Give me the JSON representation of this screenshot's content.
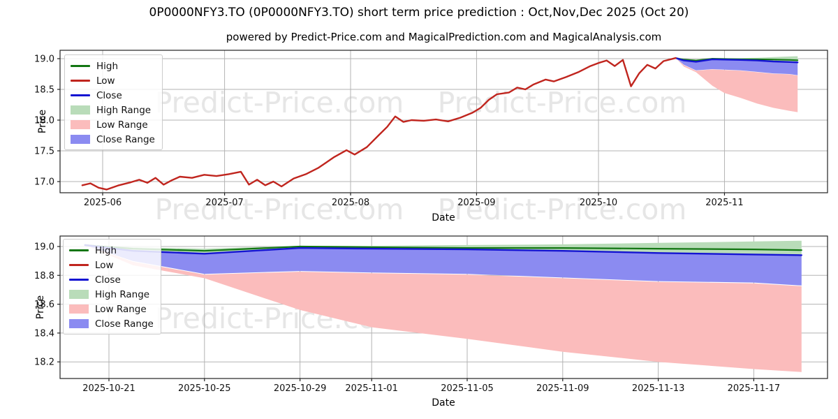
{
  "figure_title": "0P0000NFY3.TO (0P0000NFY3.TO) short term price prediction : Oct,Nov,Dec 2025 (Oct 20)",
  "subtitle": "powered by Predict-Price.com and MagicalPrediction.com and MagicalAnalysis.com",
  "ticker": "0P0000NFY3.TO",
  "prediction_label": "Oct,Nov,Dec 2025 (Oct 20)",
  "watermark": {
    "text": "Predict-Price.com"
  },
  "colors": {
    "high_line": "#127612",
    "low_line": "#c0251e",
    "close_line": "#1414d2",
    "high_range": "#b9dcb9",
    "low_range": "#fbbcbc",
    "close_range": "#8b8bf1",
    "grid": "#b3b3b3",
    "spine": "#222222",
    "watermark": "#e6e6e6"
  },
  "chart_data": [
    {
      "type": "line",
      "title": "powered by Predict-Price.com and MagicalPrediction.com and MagicalAnalysis.com",
      "xlabel": "Date",
      "ylabel": "Price",
      "grid": true,
      "legend_position": "upper left",
      "legend_items": [
        {
          "label": "High",
          "type": "line",
          "color": "#127612"
        },
        {
          "label": "Low",
          "type": "line",
          "color": "#c0251e"
        },
        {
          "label": "Close",
          "type": "line",
          "color": "#1414d2"
        },
        {
          "label": "High Range",
          "type": "patch",
          "color": "#b9dcb9"
        },
        {
          "label": "Low Range",
          "type": "patch",
          "color": "#fbbcbc"
        },
        {
          "label": "Close Range",
          "type": "patch",
          "color": "#8b8bf1"
        }
      ],
      "x_ticks": [
        {
          "label": "2025-06",
          "date": "2025-06-01"
        },
        {
          "label": "2025-07",
          "date": "2025-07-01"
        },
        {
          "label": "2025-08",
          "date": "2025-08-01"
        },
        {
          "label": "2025-09",
          "date": "2025-09-01"
        },
        {
          "label": "2025-10",
          "date": "2025-10-01"
        },
        {
          "label": "2025-11",
          "date": "2025-11-01"
        }
      ],
      "y_ticks": [
        {
          "v": 17.0,
          "label": "17.0"
        },
        {
          "v": 17.5,
          "label": "17.5"
        },
        {
          "v": 18.0,
          "label": "18.0"
        },
        {
          "v": 18.5,
          "label": "18.5"
        },
        {
          "v": 19.0,
          "label": "19.0"
        }
      ],
      "ylim": [
        16.82,
        19.14
      ],
      "xlim": [
        "2025-05-21",
        "2025-11-28"
      ],
      "series": [
        {
          "name": "High Range",
          "type": "band",
          "color": "#b9dcb9",
          "dates": [
            "2025-10-20",
            "2025-10-22",
            "2025-10-25",
            "2025-10-29",
            "2025-11-01",
            "2025-11-05",
            "2025-11-09",
            "2025-11-13",
            "2025-11-17",
            "2025-11-19"
          ],
          "upper": [
            19.01,
            18.995,
            18.985,
            19.005,
            19.005,
            19.01,
            19.015,
            19.025,
            19.035,
            19.04
          ],
          "lower": [
            19.01,
            18.97,
            18.95,
            18.99,
            18.985,
            18.98,
            18.97,
            18.955,
            18.945,
            18.94
          ]
        },
        {
          "name": "Low Range",
          "type": "band",
          "color": "#fbbcbc",
          "dates": [
            "2025-10-20",
            "2025-10-22",
            "2025-10-25",
            "2025-10-29",
            "2025-11-01",
            "2025-11-05",
            "2025-11-09",
            "2025-11-13",
            "2025-11-17",
            "2025-11-19"
          ],
          "upper": [
            19.01,
            18.895,
            18.805,
            18.825,
            18.815,
            18.805,
            18.78,
            18.755,
            18.745,
            18.725
          ],
          "lower": [
            19.01,
            18.87,
            18.78,
            18.56,
            18.44,
            18.36,
            18.27,
            18.2,
            18.15,
            18.13
          ]
        },
        {
          "name": "Close Range",
          "type": "band",
          "color": "#8b8bf1",
          "dates": [
            "2025-10-20",
            "2025-10-22",
            "2025-10-25",
            "2025-10-29",
            "2025-11-01",
            "2025-11-05",
            "2025-11-09",
            "2025-11-13",
            "2025-11-17",
            "2025-11-19"
          ],
          "upper": [
            19.01,
            18.97,
            18.95,
            18.99,
            18.985,
            18.98,
            18.97,
            18.955,
            18.945,
            18.94
          ],
          "lower": [
            19.01,
            18.9,
            18.81,
            18.83,
            18.82,
            18.81,
            18.785,
            18.76,
            18.75,
            18.73
          ]
        },
        {
          "name": "High",
          "type": "line",
          "color": "#127612",
          "width": 2,
          "dates": [
            "2025-10-20",
            "2025-10-22",
            "2025-10-25",
            "2025-10-29",
            "2025-11-01",
            "2025-11-05",
            "2025-11-09",
            "2025-11-13",
            "2025-11-17",
            "2025-11-19"
          ],
          "values": [
            19.01,
            18.985,
            18.97,
            19.0,
            18.995,
            18.99,
            18.99,
            18.985,
            18.98,
            18.975
          ]
        },
        {
          "name": "Close",
          "type": "line",
          "color": "#1414d2",
          "width": 2.4,
          "dates": [
            "2025-10-20",
            "2025-10-22",
            "2025-10-25",
            "2025-10-29",
            "2025-11-01",
            "2025-11-05",
            "2025-11-09",
            "2025-11-13",
            "2025-11-17",
            "2025-11-19"
          ],
          "values": [
            19.01,
            18.97,
            18.95,
            18.99,
            18.985,
            18.98,
            18.97,
            18.955,
            18.945,
            18.94
          ]
        },
        {
          "name": "Low",
          "type": "line",
          "color": "#c0251e",
          "width": 2.4,
          "dates": [
            "2025-05-27",
            "2025-05-29",
            "2025-05-31",
            "2025-06-02",
            "2025-06-05",
            "2025-06-08",
            "2025-06-10",
            "2025-06-12",
            "2025-06-14",
            "2025-06-16",
            "2025-06-18",
            "2025-06-20",
            "2025-06-23",
            "2025-06-26",
            "2025-06-29",
            "2025-07-02",
            "2025-07-05",
            "2025-07-07",
            "2025-07-09",
            "2025-07-11",
            "2025-07-13",
            "2025-07-15",
            "2025-07-18",
            "2025-07-21",
            "2025-07-24",
            "2025-07-26",
            "2025-07-28",
            "2025-07-31",
            "2025-08-02",
            "2025-08-05",
            "2025-08-08",
            "2025-08-10",
            "2025-08-12",
            "2025-08-14",
            "2025-08-16",
            "2025-08-19",
            "2025-08-22",
            "2025-08-25",
            "2025-08-28",
            "2025-08-31",
            "2025-09-02",
            "2025-09-04",
            "2025-09-06",
            "2025-09-09",
            "2025-09-11",
            "2025-09-13",
            "2025-09-15",
            "2025-09-18",
            "2025-09-20",
            "2025-09-23",
            "2025-09-26",
            "2025-09-29",
            "2025-10-01",
            "2025-10-03",
            "2025-10-05",
            "2025-10-07",
            "2025-10-09",
            "2025-10-11",
            "2025-10-13",
            "2025-10-15",
            "2025-10-17",
            "2025-10-20"
          ],
          "values": [
            16.94,
            16.97,
            16.9,
            16.87,
            16.94,
            16.99,
            17.03,
            16.98,
            17.06,
            16.95,
            17.02,
            17.08,
            17.06,
            17.11,
            17.09,
            17.12,
            17.16,
            16.95,
            17.03,
            16.94,
            17.0,
            16.92,
            17.05,
            17.12,
            17.22,
            17.31,
            17.4,
            17.51,
            17.44,
            17.56,
            17.76,
            17.89,
            18.06,
            17.97,
            18.0,
            17.99,
            18.01,
            17.98,
            18.04,
            18.12,
            18.2,
            18.33,
            18.42,
            18.45,
            18.53,
            18.5,
            18.58,
            18.66,
            18.63,
            18.7,
            18.78,
            18.88,
            18.93,
            18.97,
            18.88,
            18.98,
            18.55,
            18.76,
            18.9,
            18.84,
            18.96,
            19.01
          ]
        }
      ]
    },
    {
      "type": "line",
      "title": "",
      "xlabel": "Date",
      "ylabel": "Price",
      "grid": true,
      "legend_position": "upper left",
      "legend_items": [
        {
          "label": "High",
          "type": "line",
          "color": "#127612"
        },
        {
          "label": "Low",
          "type": "line",
          "color": "#c0251e"
        },
        {
          "label": "Close",
          "type": "line",
          "color": "#1414d2"
        },
        {
          "label": "High Range",
          "type": "patch",
          "color": "#b9dcb9"
        },
        {
          "label": "Low Range",
          "type": "patch",
          "color": "#fbbcbc"
        },
        {
          "label": "Close Range",
          "type": "patch",
          "color": "#8b8bf1"
        }
      ],
      "x_ticks": [
        {
          "label": "2025-10-21",
          "date": "2025-10-21"
        },
        {
          "label": "2025-10-25",
          "date": "2025-10-25"
        },
        {
          "label": "2025-10-29",
          "date": "2025-10-29"
        },
        {
          "label": "2025-11-01",
          "date": "2025-11-01"
        },
        {
          "label": "2025-11-05",
          "date": "2025-11-05"
        },
        {
          "label": "2025-11-09",
          "date": "2025-11-09"
        },
        {
          "label": "2025-11-13",
          "date": "2025-11-13"
        },
        {
          "label": "2025-11-17",
          "date": "2025-11-17"
        }
      ],
      "y_ticks": [
        {
          "v": 18.2,
          "label": "18.2"
        },
        {
          "v": 18.4,
          "label": "18.4"
        },
        {
          "v": 18.6,
          "label": "18.6"
        },
        {
          "v": 18.8,
          "label": "18.8"
        },
        {
          "v": 19.0,
          "label": "19.0"
        }
      ],
      "ylim": [
        18.08,
        19.07
      ],
      "xlim": [
        "2025-10-19",
        "2025-11-20"
      ],
      "series": [
        {
          "name": "High Range",
          "type": "band",
          "color": "#b9dcb9",
          "dates": [
            "2025-10-20",
            "2025-10-22",
            "2025-10-25",
            "2025-10-29",
            "2025-11-01",
            "2025-11-05",
            "2025-11-09",
            "2025-11-13",
            "2025-11-17",
            "2025-11-19"
          ],
          "upper": [
            19.01,
            18.995,
            18.985,
            19.005,
            19.005,
            19.01,
            19.015,
            19.025,
            19.035,
            19.04
          ],
          "lower": [
            19.01,
            18.97,
            18.95,
            18.99,
            18.985,
            18.98,
            18.97,
            18.955,
            18.945,
            18.94
          ]
        },
        {
          "name": "Low Range",
          "type": "band",
          "color": "#fbbcbc",
          "dates": [
            "2025-10-20",
            "2025-10-22",
            "2025-10-25",
            "2025-10-29",
            "2025-11-01",
            "2025-11-05",
            "2025-11-09",
            "2025-11-13",
            "2025-11-17",
            "2025-11-19"
          ],
          "upper": [
            19.01,
            18.895,
            18.805,
            18.825,
            18.815,
            18.805,
            18.78,
            18.755,
            18.745,
            18.725
          ],
          "lower": [
            19.01,
            18.87,
            18.78,
            18.56,
            18.44,
            18.36,
            18.27,
            18.2,
            18.15,
            18.13
          ]
        },
        {
          "name": "Close Range",
          "type": "band",
          "color": "#8b8bf1",
          "dates": [
            "2025-10-20",
            "2025-10-22",
            "2025-10-25",
            "2025-10-29",
            "2025-11-01",
            "2025-11-05",
            "2025-11-09",
            "2025-11-13",
            "2025-11-17",
            "2025-11-19"
          ],
          "upper": [
            19.01,
            18.97,
            18.95,
            18.99,
            18.985,
            18.98,
            18.97,
            18.955,
            18.945,
            18.94
          ],
          "lower": [
            19.01,
            18.9,
            18.81,
            18.83,
            18.82,
            18.81,
            18.785,
            18.76,
            18.75,
            18.73
          ]
        },
        {
          "name": "High",
          "type": "line",
          "color": "#127612",
          "width": 2.2,
          "dates": [
            "2025-10-20",
            "2025-10-22",
            "2025-10-25",
            "2025-10-29",
            "2025-11-01",
            "2025-11-05",
            "2025-11-09",
            "2025-11-13",
            "2025-11-17",
            "2025-11-19"
          ],
          "values": [
            19.01,
            18.985,
            18.97,
            19.0,
            18.995,
            18.99,
            18.99,
            18.985,
            18.98,
            18.975
          ]
        },
        {
          "name": "Close",
          "type": "line",
          "color": "#1414d2",
          "width": 2.4,
          "dates": [
            "2025-10-20",
            "2025-10-22",
            "2025-10-25",
            "2025-10-29",
            "2025-11-01",
            "2025-11-05",
            "2025-11-09",
            "2025-11-13",
            "2025-11-17",
            "2025-11-19"
          ],
          "values": [
            19.01,
            18.97,
            18.95,
            18.99,
            18.985,
            18.98,
            18.97,
            18.955,
            18.945,
            18.94
          ]
        }
      ]
    }
  ]
}
